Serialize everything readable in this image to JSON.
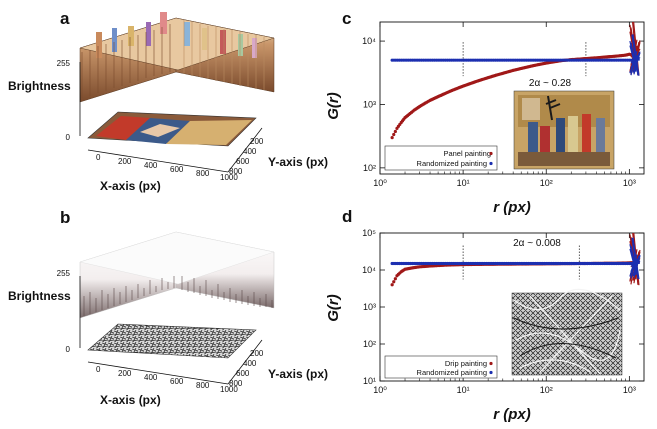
{
  "colors": {
    "red": "#a01818",
    "blue": "#1c2fb0",
    "gold": "#d8a860",
    "crimson": "#b02828",
    "noise_dark": "#3a3a3a",
    "noise_light": "#f0f0f0"
  },
  "panels": {
    "a": {
      "letter": "a",
      "zlabel": "Brightness",
      "ztick": "255",
      "ztick0": "0",
      "xlabel": "X-axis (px)",
      "ylabel": "Y-axis (px)",
      "xticks": [
        "0",
        "200",
        "400",
        "600",
        "800",
        "1000"
      ],
      "yticks": [
        "200",
        "400",
        "600",
        "800"
      ]
    },
    "b": {
      "letter": "b",
      "zlabel": "Brightness",
      "ztick": "255",
      "ztick0": "0",
      "xlabel": "X-axis (px)",
      "ylabel": "Y-axis (px)",
      "xticks": [
        "0",
        "200",
        "400",
        "600",
        "800",
        "1000"
      ],
      "yticks": [
        "200",
        "400",
        "600",
        "800"
      ]
    }
  },
  "chart_data": [
    {
      "panel": "c",
      "type": "scatter",
      "letter": "c",
      "xlabel": "r (px)",
      "ylabel": "G(r)",
      "xscale": "log",
      "yscale": "log",
      "xlim": [
        1,
        1500
      ],
      "ylim": [
        80,
        20000
      ],
      "xticks": [
        1,
        10,
        100,
        1000
      ],
      "xtick_labels": [
        "10⁰",
        "10¹",
        "10²",
        "10³"
      ],
      "yticks": [
        100,
        1000,
        10000
      ],
      "ytick_labels": [
        "10²",
        "10³",
        "10⁴"
      ],
      "annotation": "2α ~ 0.28",
      "fit_range_markers": [
        10,
        300
      ],
      "legend_position": "bottom-left",
      "series": [
        {
          "name": "Panel painting",
          "color": "#a01818",
          "x": [
            1.4,
            1.6,
            1.8,
            2.0,
            2.3,
            2.6,
            3,
            3.5,
            4,
            5,
            6,
            7,
            8,
            10,
            12,
            15,
            20,
            25,
            30,
            40,
            50,
            70,
            100,
            150,
            200,
            300,
            400,
            500,
            600,
            700,
            800,
            900,
            1000,
            1100,
            1200
          ],
          "y": [
            300,
            420,
            520,
            620,
            720,
            820,
            930,
            1050,
            1160,
            1330,
            1480,
            1620,
            1740,
            1950,
            2120,
            2350,
            2650,
            2900,
            3100,
            3450,
            3700,
            4100,
            4500,
            4900,
            5100,
            5300,
            5450,
            5600,
            5700,
            5800,
            5900,
            6000,
            6200,
            6000,
            6500
          ]
        },
        {
          "name": "Randomized painting",
          "color": "#1c2fb0",
          "x": [
            1.4,
            2,
            3,
            5,
            8,
            10,
            20,
            50,
            100,
            200,
            300,
            500,
            700,
            1000,
            1200
          ],
          "y": [
            5000,
            5000,
            5000,
            5000,
            5000,
            5000,
            5000,
            5000,
            5000,
            5000,
            5000,
            5000,
            5000,
            5000,
            5000
          ]
        }
      ]
    },
    {
      "panel": "d",
      "type": "scatter",
      "letter": "d",
      "xlabel": "r (px)",
      "ylabel": "G(r)",
      "xscale": "log",
      "yscale": "log",
      "xlim": [
        1,
        1500
      ],
      "ylim": [
        10,
        100000
      ],
      "xticks": [
        1,
        10,
        100,
        1000
      ],
      "xtick_labels": [
        "10⁰",
        "10¹",
        "10²",
        "10³"
      ],
      "yticks": [
        10,
        100,
        1000,
        10000,
        100000
      ],
      "ytick_labels": [
        "10¹",
        "10²",
        "10³",
        "10⁴",
        "10⁵"
      ],
      "annotation": "2α ~ 0.008",
      "fit_range_markers": [
        10,
        250
      ],
      "legend_position": "bottom-left",
      "series": [
        {
          "name": "Drip painting",
          "color": "#a01818",
          "x": [
            1.4,
            1.6,
            1.8,
            2,
            2.5,
            3,
            4,
            5,
            6,
            8,
            10,
            20,
            50,
            100,
            200,
            300,
            500,
            700,
            1000,
            1200
          ],
          "y": [
            4000,
            7000,
            9000,
            10500,
            11500,
            12200,
            12800,
            13200,
            13500,
            13800,
            14000,
            14300,
            14500,
            14700,
            14900,
            15000,
            15200,
            15300,
            15600,
            16000
          ]
        },
        {
          "name": "Randomized painting",
          "color": "#1c2fb0",
          "x": [
            1.4,
            2,
            3,
            5,
            8,
            10,
            20,
            50,
            100,
            200,
            300,
            500,
            700,
            1000,
            1200
          ],
          "y": [
            15000,
            15000,
            15000,
            15000,
            15000,
            15000,
            15000,
            15000,
            15000,
            15000,
            15000,
            15000,
            15000,
            15000,
            15000
          ]
        }
      ]
    }
  ]
}
